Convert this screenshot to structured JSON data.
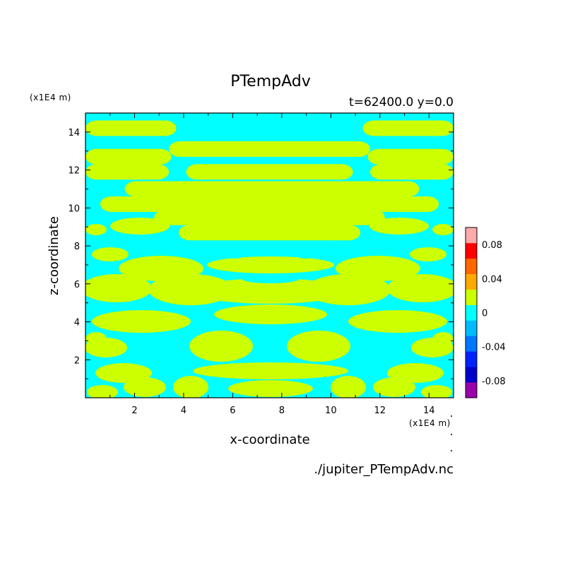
{
  "chart_data": {
    "type": "heatmap",
    "title": "PTempAdv",
    "subtitle": "t=62400.0 y=0.0",
    "xlabel": "x-coordinate",
    "ylabel": "z-coordinate",
    "x_unit": "(x1E4 m)",
    "y_unit": "(x1E4 m)",
    "footer": "./jupiter_PTempAdv.nc",
    "xlim": [
      0,
      15
    ],
    "ylim": [
      0,
      15
    ],
    "xticks": [
      "2",
      "4",
      "6",
      "8",
      "10",
      "12",
      "14"
    ],
    "yticks": [
      "2",
      "4",
      "6",
      "8",
      "10",
      "12",
      "14"
    ],
    "colorbar": {
      "range": [
        -0.1,
        0.1
      ],
      "step": 0.02,
      "labels": [
        "0.08",
        "0.04",
        "0",
        "-0.04",
        "-0.08"
      ],
      "colors": [
        "#9900aa",
        "#0000cc",
        "#0022ff",
        "#0077ff",
        "#00bbff",
        "#00ffff",
        "#ccff00",
        "#ffaa00",
        "#ff6600",
        "#ff0000",
        "#ffaaaa"
      ]
    },
    "background_value_level": "-0.02 to 0",
    "background_color": "#00ffff",
    "feature_value_level": "0 to 0.02",
    "feature_color": "#ccff00",
    "bands_upper": [
      {
        "z": 14.2,
        "x0": 0.0,
        "x1": 3.7
      },
      {
        "z": 14.2,
        "x0": 11.3,
        "x1": 15.0
      },
      {
        "z": 13.1,
        "x0": 3.4,
        "x1": 11.6
      },
      {
        "z": 12.7,
        "x0": 0.0,
        "x1": 3.5
      },
      {
        "z": 12.7,
        "x0": 11.5,
        "x1": 15.0
      },
      {
        "z": 11.9,
        "x0": 0.0,
        "x1": 3.4
      },
      {
        "z": 11.9,
        "x0": 4.1,
        "x1": 10.9
      },
      {
        "z": 11.9,
        "x0": 11.6,
        "x1": 15.0
      },
      {
        "z": 11.0,
        "x0": 1.6,
        "x1": 13.6
      },
      {
        "z": 10.2,
        "x0": 0.6,
        "x1": 14.4
      },
      {
        "z": 9.5,
        "x0": 2.8,
        "x1": 12.2
      },
      {
        "z": 8.7,
        "x0": 3.8,
        "x1": 11.2
      }
    ]
  }
}
